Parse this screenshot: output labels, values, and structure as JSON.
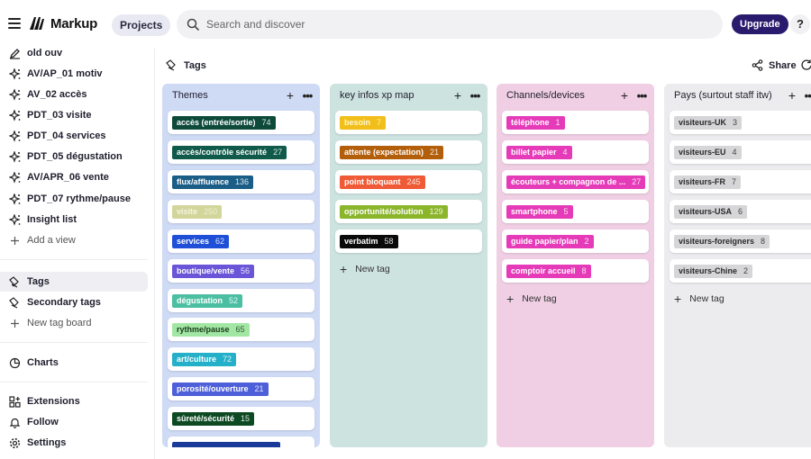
{
  "app": {
    "name": "Markup"
  },
  "header": {
    "projects_label": "Projects",
    "search_placeholder": "Search and discover",
    "upgrade_label": "Upgrade",
    "help_label": "?"
  },
  "sidebar": {
    "views": [
      {
        "label": "old ouv",
        "icon": "pen-icon"
      },
      {
        "label": "AV/AP_01 motiv",
        "icon": "sparkle-icon"
      },
      {
        "label": "AV_02 accès",
        "icon": "sparkle-icon"
      },
      {
        "label": "PDT_03 visite",
        "icon": "sparkle-icon"
      },
      {
        "label": "PDT_04 services",
        "icon": "sparkle-icon"
      },
      {
        "label": "PDT_05 dégustation",
        "icon": "sparkle-icon"
      },
      {
        "label": "AV/APR_06 vente",
        "icon": "sparkle-icon"
      },
      {
        "label": "PDT_07 rythme/pause",
        "icon": "sparkle-icon"
      },
      {
        "label": "Insight list",
        "icon": "sparkle-icon"
      }
    ],
    "add_view_label": "Add a view",
    "tags_label": "Tags",
    "secondary_tags_label": "Secondary tags",
    "new_tag_board_label": "New tag board",
    "charts_label": "Charts",
    "extensions_label": "Extensions",
    "follow_label": "Follow",
    "settings_label": "Settings"
  },
  "board": {
    "title": "Tags",
    "share_label": "Share",
    "new_tag_label": "New tag",
    "columns": [
      {
        "title": "Themes",
        "bg": "#cfdaf5",
        "tags": [
          {
            "label": "accès (entrée/sortie)",
            "count": "74",
            "color": "#0d4a3a"
          },
          {
            "label": "accès/contrôle sécurité",
            "count": "27",
            "color": "#0f5a4a"
          },
          {
            "label": "flux/affluence",
            "count": "136",
            "color": "#1a5d86"
          },
          {
            "label": "visite",
            "count": "250",
            "color": "#d3d69a"
          },
          {
            "label": "services",
            "count": "62",
            "color": "#1e4fd6"
          },
          {
            "label": "boutique/vente",
            "count": "56",
            "color": "#6a55d8"
          },
          {
            "label": "dégustation",
            "count": "52",
            "color": "#4cbfa2"
          },
          {
            "label": "rythme/pause",
            "count": "65",
            "color": "#a2e6a4"
          },
          {
            "label": "art/culture",
            "count": "72",
            "color": "#25b0c9"
          },
          {
            "label": "porosité/ouverture",
            "count": "21",
            "color": "#4d5fd9"
          },
          {
            "label": "sûreté/sécurité",
            "count": "15",
            "color": "#0d4a22"
          }
        ]
      },
      {
        "title": "key infos xp map",
        "bg": "#cde3e0",
        "tags": [
          {
            "label": "besoin",
            "count": "7",
            "color": "#f2bf1a"
          },
          {
            "label": "attente (expectation)",
            "count": "21",
            "color": "#b35e0a"
          },
          {
            "label": "point bloquant",
            "count": "245",
            "color": "#f05a36"
          },
          {
            "label": "opportunité/solution",
            "count": "129",
            "color": "#8bb52b"
          },
          {
            "label": "verbatim",
            "count": "58",
            "color": "#0a0a0a"
          }
        ]
      },
      {
        "title": "Channels/devices",
        "bg": "#f0cfe4",
        "tags": [
          {
            "label": "téléphone",
            "count": "1",
            "color": "#e63bb8"
          },
          {
            "label": "billet papier",
            "count": "4",
            "color": "#e63bb8"
          },
          {
            "label": "écouteurs + compagnon de ...",
            "count": "27",
            "color": "#e63bb8"
          },
          {
            "label": "smartphone",
            "count": "5",
            "color": "#e63bb8"
          },
          {
            "label": "guide papier/plan",
            "count": "2",
            "color": "#e63bb8"
          },
          {
            "label": "comptoir accueil",
            "count": "8",
            "color": "#e63bb8"
          }
        ]
      },
      {
        "title": "Pays (surtout staff itw)",
        "bg": "#ececee",
        "tags": [
          {
            "label": "visiteurs-UK",
            "count": "3",
            "color": "#d6d6d8"
          },
          {
            "label": "visiteurs-EU",
            "count": "4",
            "color": "#d6d6d8"
          },
          {
            "label": "visiteurs-FR",
            "count": "7",
            "color": "#d6d6d8"
          },
          {
            "label": "visiteurs-USA",
            "count": "6",
            "color": "#d6d6d8"
          },
          {
            "label": "visiteurs-foreigners",
            "count": "8",
            "color": "#d6d6d8"
          },
          {
            "label": "visiteurs-Chine",
            "count": "2",
            "color": "#d6d6d8"
          }
        ]
      }
    ]
  }
}
